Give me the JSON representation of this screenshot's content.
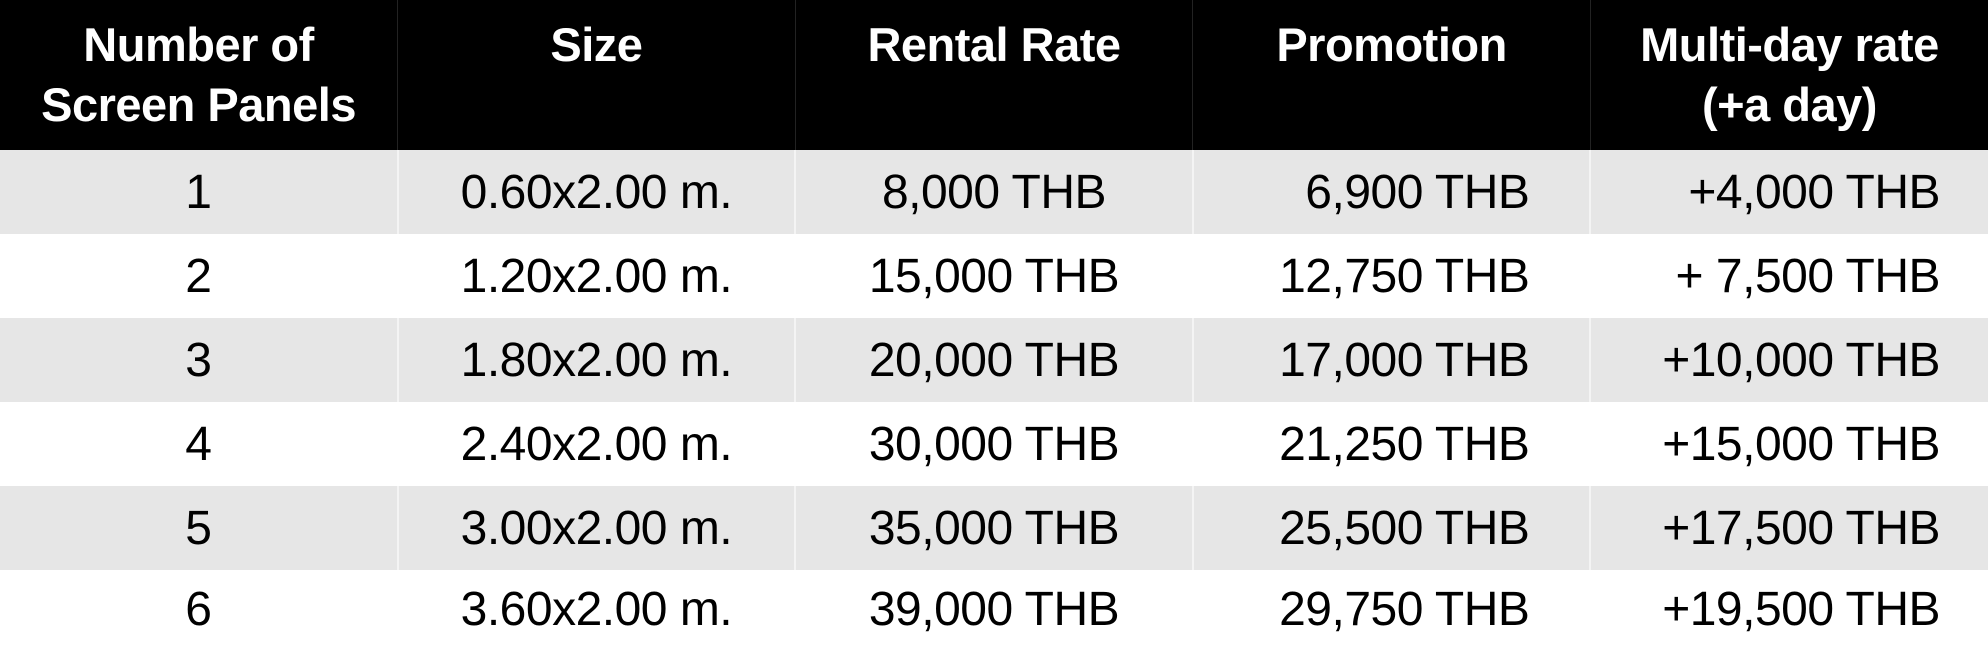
{
  "table": {
    "headers": [
      "Number of Screen Panels",
      "Size",
      "Rental Rate",
      "Promotion",
      "Multi-day rate (+a day)"
    ],
    "header_lines": [
      [
        "Number of",
        "Screen Panels"
      ],
      [
        "Size"
      ],
      [
        "Rental Rate"
      ],
      [
        "Promotion"
      ],
      [
        "Multi-day rate",
        "(+a day)"
      ]
    ],
    "rows": [
      [
        "1",
        "0.60x2.00 m.",
        "8,000 THB",
        "6,900 THB",
        "+4,000 THB"
      ],
      [
        "2",
        "1.20x2.00 m.",
        "15,000 THB",
        "12,750 THB",
        "+ 7,500 THB"
      ],
      [
        "3",
        "1.80x2.00 m.",
        "20,000 THB",
        "17,000 THB",
        "+10,000 THB"
      ],
      [
        "4",
        "2.40x2.00 m.",
        "30,000 THB",
        "21,250 THB",
        "+15,000 THB"
      ],
      [
        "5",
        "3.00x2.00 m.",
        "35,000 THB",
        "25,500 THB",
        "+17,500 THB"
      ],
      [
        "6",
        "3.60x2.00 m.",
        "39,000 THB",
        "29,750 THB",
        "+19,500 THB"
      ]
    ]
  },
  "colors": {
    "header_bg": "#000000",
    "header_text": "#ffffff",
    "stripe": "#e6e6e6"
  }
}
